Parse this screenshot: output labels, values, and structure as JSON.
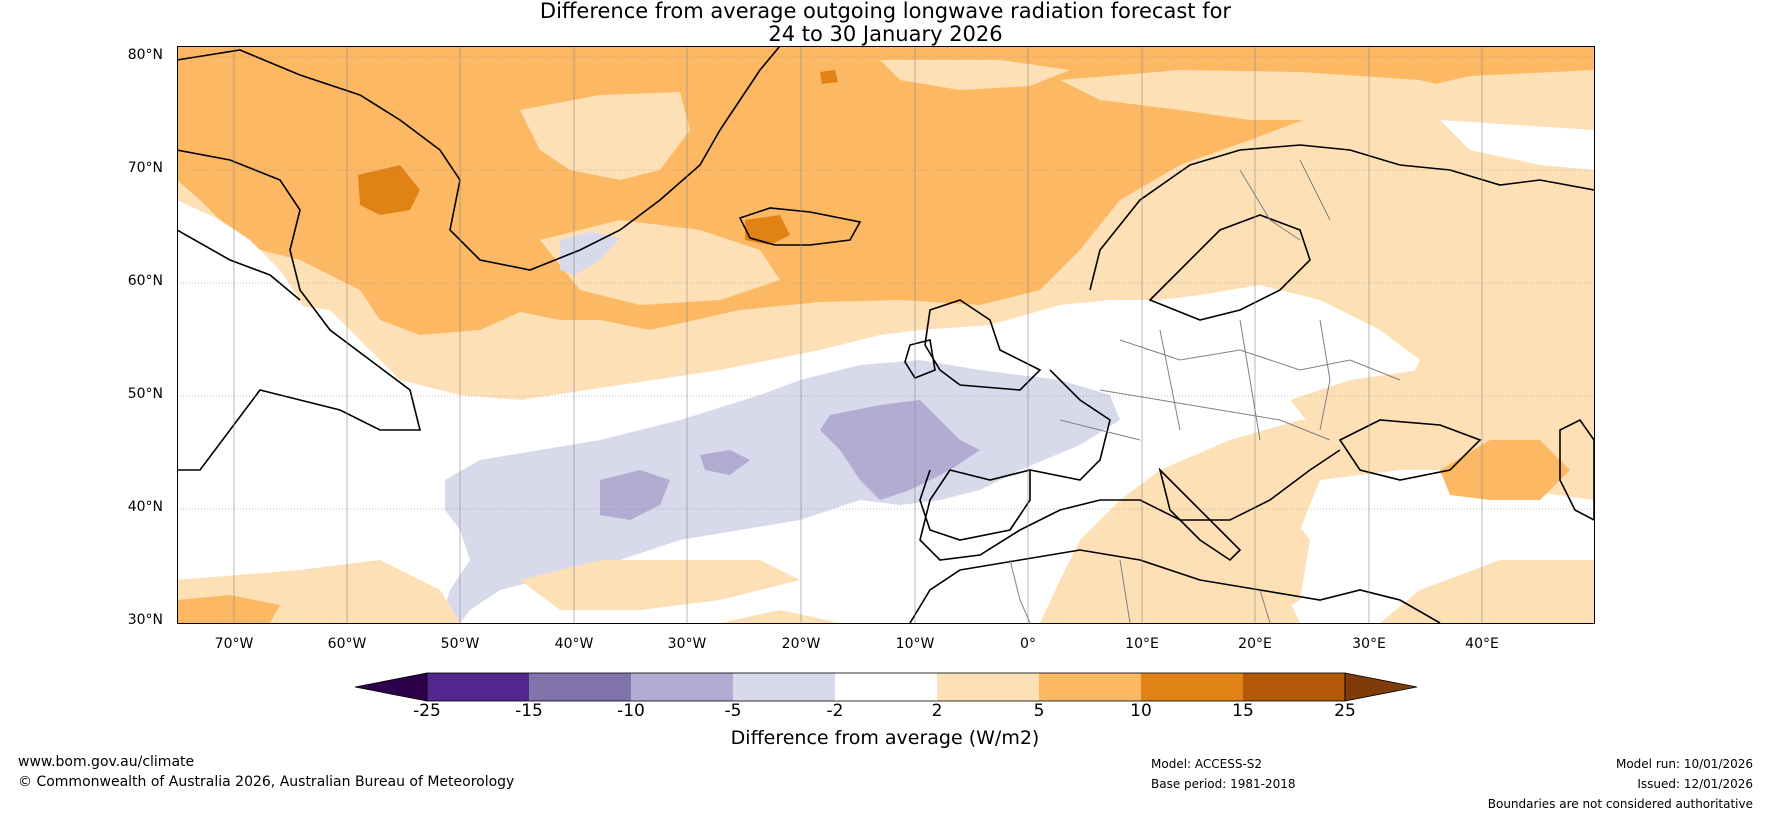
{
  "title": {
    "line1": "Difference from average outgoing longwave radiation forecast for",
    "line2": "24 to 30 January 2026"
  },
  "map": {
    "lat_labels": [
      "80°N",
      "70°N",
      "60°N",
      "50°N",
      "40°N",
      "30°N"
    ],
    "lon_labels": [
      "70°W",
      "60°W",
      "50°W",
      "40°W",
      "30°W",
      "20°W",
      "10°W",
      "0°",
      "10°E",
      "20°E",
      "30°E",
      "40°E"
    ],
    "lat_range": [
      30,
      81
    ],
    "lon_range": [
      -75,
      50
    ]
  },
  "colorbar": {
    "ticks": [
      "-25",
      "-15",
      "-10",
      "-5",
      "-2",
      "2",
      "5",
      "10",
      "15",
      "25"
    ],
    "colors": [
      "#54278f",
      "#8073ac",
      "#b2abd2",
      "#d8daeb",
      "#ffffff",
      "#fee0b6",
      "#fdb863",
      "#e08214",
      "#b35806"
    ],
    "under_color": "#2d004b",
    "over_color": "#7f3b08",
    "label": "Difference from average (W/m2)"
  },
  "footer": {
    "website": "www.bom.gov.au/climate",
    "copyright": "© Commonwealth of Australia 2026, Australian Bureau of Meteorology",
    "model": "Model: ACCESS-S2",
    "base_period": "Base period: 1981-2018",
    "model_run": "Model run: 10/01/2026",
    "issued": "Issued: 12/01/2026",
    "disclaimer": "Boundaries are not considered authoritative"
  }
}
